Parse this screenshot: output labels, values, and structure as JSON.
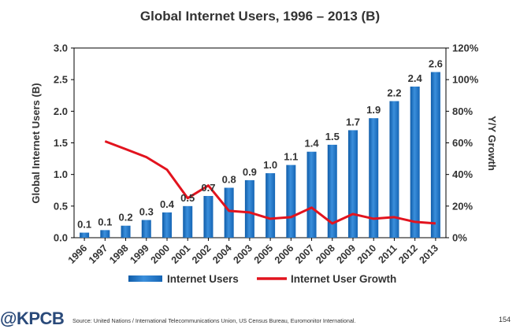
{
  "chart_data": {
    "type": "bar+line",
    "title": "Global Internet Users, 1996 – 2013 (B)",
    "categories": [
      "1996",
      "1997",
      "1998",
      "1999",
      "2000",
      "2001",
      "2002",
      "2004",
      "2003",
      "2005",
      "2006",
      "2007",
      "2008",
      "2009",
      "2010",
      "2011",
      "2012",
      "2013"
    ],
    "series": [
      {
        "name": "Internet Users",
        "type": "bar",
        "axis": "left",
        "values": [
          0.08,
          0.12,
          0.19,
          0.28,
          0.4,
          0.5,
          0.66,
          0.79,
          0.91,
          1.02,
          1.15,
          1.36,
          1.47,
          1.7,
          1.89,
          2.16,
          2.39,
          2.62
        ],
        "labels": [
          "0.1",
          "0.1",
          "0.2",
          "0.3",
          "0.4",
          "0.5",
          "0.7",
          "0.8",
          "0.9",
          "1.0",
          "1.1",
          "1.4",
          "1.5",
          "1.7",
          "1.9",
          "2.2",
          "2.4",
          "2.6"
        ]
      },
      {
        "name": "Internet User Growth",
        "type": "line",
        "axis": "right",
        "values": [
          null,
          61,
          56,
          51,
          43,
          25,
          33,
          17,
          16,
          12,
          13,
          19,
          9,
          15,
          12,
          13,
          10,
          9
        ]
      }
    ],
    "ylabel": "Global Internet Users (B)",
    "ylabel_right": "Y/Y Growth",
    "ylim": [
      0,
      3.0
    ],
    "yticks": [
      "0.0",
      "0.5",
      "1.0",
      "1.5",
      "2.0",
      "2.5",
      "3.0"
    ],
    "ylim_right": [
      0,
      120
    ],
    "yticks_right": [
      "0%",
      "20%",
      "40%",
      "60%",
      "80%",
      "100%",
      "120%"
    ],
    "legend": "bottom",
    "colors": {
      "bar": "#1a6fbf",
      "bar_light": "#5aa5e8",
      "line": "#e2131e"
    }
  },
  "footer": {
    "logo": "@KPCB",
    "source": "Source: United Nations / International Telecommunications Union, US Census Bureau, Euromonitor International.",
    "page": "154"
  }
}
